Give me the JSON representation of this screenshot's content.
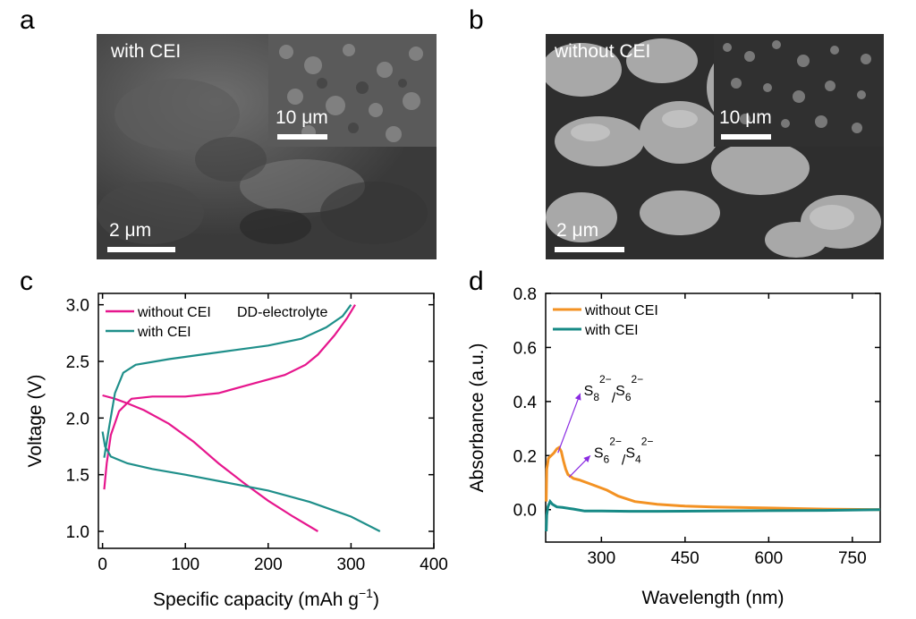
{
  "panels": {
    "a": {
      "letter": "a",
      "label": "with CEI",
      "scale_main": "2 μm",
      "scale_inset": "10 μm"
    },
    "b": {
      "letter": "b",
      "label": "without CEI",
      "scale_main": "2 μm",
      "scale_inset": "10 μm"
    },
    "c": {
      "letter": "c"
    },
    "d": {
      "letter": "d"
    }
  },
  "chart_data": [
    {
      "panel": "c",
      "type": "line",
      "xlabel": "Specific capacity (mAh g",
      "xlabel_sup": "−1",
      "xlabel_tail": ")",
      "ylabel": "Voltage (V)",
      "xlim": [
        -5,
        400
      ],
      "ylim": [
        0.85,
        3.1
      ],
      "xticks": [
        0,
        100,
        200,
        300,
        400
      ],
      "yticks": [
        1.0,
        1.5,
        2.0,
        2.5,
        3.0
      ],
      "ytick_labels": [
        "1.0",
        "1.5",
        "2.0",
        "2.5",
        "3.0"
      ],
      "annotation": "DD-electrolyte",
      "legend_position": "top-left",
      "series": [
        {
          "name": "without CEI",
          "color": "#e6168d",
          "segments": [
            [
              [
                0,
                2.2
              ],
              [
                15,
                2.17
              ],
              [
                30,
                2.13
              ],
              [
                50,
                2.07
              ],
              [
                80,
                1.95
              ],
              [
                110,
                1.79
              ],
              [
                140,
                1.6
              ],
              [
                170,
                1.43
              ],
              [
                200,
                1.27
              ],
              [
                230,
                1.13
              ],
              [
                260,
                1.0
              ]
            ],
            [
              [
                2,
                1.37
              ],
              [
                5,
                1.6
              ],
              [
                10,
                1.85
              ],
              [
                20,
                2.06
              ],
              [
                35,
                2.17
              ],
              [
                60,
                2.19
              ],
              [
                100,
                2.19
              ],
              [
                140,
                2.22
              ],
              [
                180,
                2.3
              ],
              [
                220,
                2.38
              ],
              [
                245,
                2.47
              ],
              [
                260,
                2.56
              ],
              [
                280,
                2.73
              ],
              [
                295,
                2.88
              ],
              [
                305,
                3.0
              ]
            ]
          ]
        },
        {
          "name": "with CEI",
          "color": "#1f8f8a",
          "segments": [
            [
              [
                0,
                1.88
              ],
              [
                3,
                1.75
              ],
              [
                10,
                1.66
              ],
              [
                30,
                1.6
              ],
              [
                60,
                1.55
              ],
              [
                100,
                1.5
              ],
              [
                150,
                1.43
              ],
              [
                200,
                1.36
              ],
              [
                250,
                1.26
              ],
              [
                300,
                1.13
              ],
              [
                335,
                1.0
              ]
            ],
            [
              [
                2,
                1.65
              ],
              [
                8,
                1.92
              ],
              [
                15,
                2.22
              ],
              [
                25,
                2.4
              ],
              [
                40,
                2.47
              ],
              [
                80,
                2.52
              ],
              [
                120,
                2.56
              ],
              [
                160,
                2.6
              ],
              [
                200,
                2.64
              ],
              [
                240,
                2.7
              ],
              [
                270,
                2.8
              ],
              [
                290,
                2.9
              ],
              [
                300,
                3.0
              ]
            ]
          ]
        }
      ]
    },
    {
      "panel": "d",
      "type": "line",
      "xlabel": "Wavelength (nm)",
      "ylabel": "Absorbance (a.u.)",
      "xlim": [
        200,
        800
      ],
      "ylim": [
        -0.12,
        0.8
      ],
      "xticks": [
        300,
        450,
        600,
        750
      ],
      "yticks": [
        0.0,
        0.2,
        0.4,
        0.6,
        0.8
      ],
      "ytick_labels": [
        "0.0",
        "0.2",
        "0.4",
        "0.6",
        "0.8"
      ],
      "legend_position": "top-left",
      "annotations": [
        {
          "base1": "S",
          "sub1": "8",
          "sup1": "2−",
          "slash": "/",
          "base2": "S",
          "sub2": "6",
          "sup2": "2−",
          "arrow_from": [
            222,
            0.21
          ],
          "arrow_to": [
            262,
            0.43
          ]
        },
        {
          "base1": "S",
          "sub1": "6",
          "sup1": "2−",
          "slash": "/",
          "base2": "S",
          "sub2": "4",
          "sup2": "2−",
          "arrow_from": [
            242,
            0.12
          ],
          "arrow_to": [
            280,
            0.2
          ]
        }
      ],
      "series": [
        {
          "name": "without CEI",
          "color": "#f39223",
          "points": [
            [
              201,
              0.03
            ],
            [
              202,
              0.15
            ],
            [
              205,
              0.19
            ],
            [
              210,
              0.2
            ],
            [
              215,
              0.21
            ],
            [
              220,
              0.225
            ],
            [
              224,
              0.23
            ],
            [
              228,
              0.215
            ],
            [
              232,
              0.18
            ],
            [
              236,
              0.15
            ],
            [
              240,
              0.13
            ],
            [
              250,
              0.115
            ],
            [
              260,
              0.11
            ],
            [
              280,
              0.095
            ],
            [
              300,
              0.08
            ],
            [
              310,
              0.072
            ],
            [
              330,
              0.05
            ],
            [
              360,
              0.03
            ],
            [
              400,
              0.02
            ],
            [
              450,
              0.013
            ],
            [
              500,
              0.01
            ],
            [
              600,
              0.006
            ],
            [
              700,
              0.002
            ],
            [
              800,
              0.0
            ]
          ]
        },
        {
          "name": "with CEI",
          "color": "#178a86",
          "points": [
            [
              201,
              -0.08
            ],
            [
              202,
              -0.02
            ],
            [
              204,
              0.01
            ],
            [
              206,
              0.02
            ],
            [
              208,
              0.03
            ],
            [
              212,
              0.02
            ],
            [
              216,
              0.015
            ],
            [
              220,
              0.01
            ],
            [
              230,
              0.008
            ],
            [
              250,
              0.002
            ],
            [
              270,
              -0.005
            ],
            [
              300,
              -0.005
            ],
            [
              350,
              -0.006
            ],
            [
              400,
              -0.006
            ],
            [
              500,
              -0.005
            ],
            [
              600,
              -0.004
            ],
            [
              700,
              -0.003
            ],
            [
              800,
              0.0
            ]
          ]
        }
      ]
    }
  ]
}
